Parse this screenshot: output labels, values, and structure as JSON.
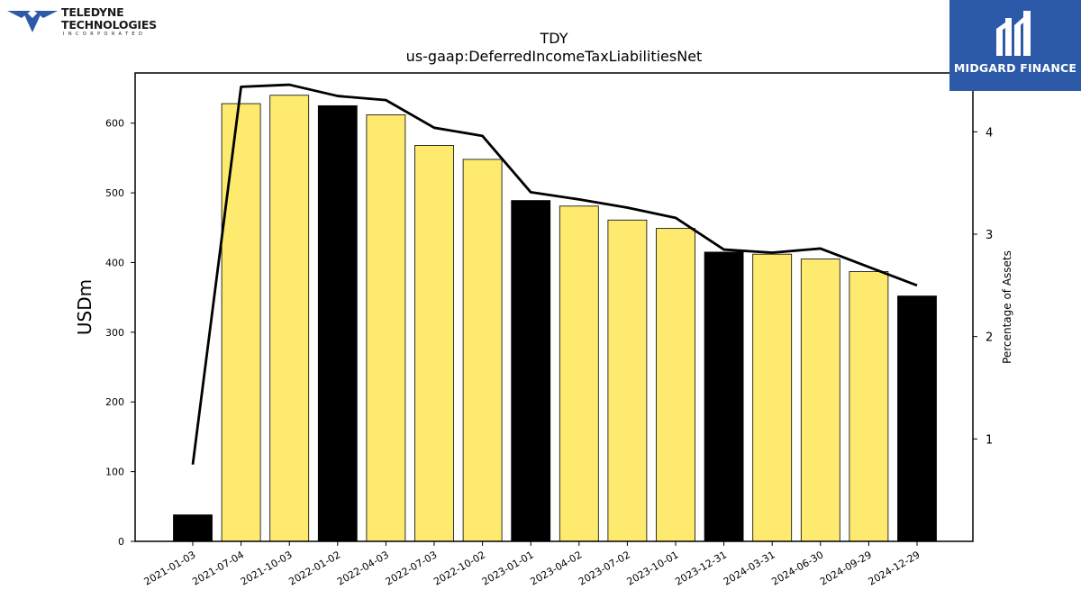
{
  "logos": {
    "left_line1": "TELEDYNE",
    "left_line2": "TECHNOLOGIES",
    "left_line3": "INCORPORATED",
    "right_brand": "MIDGARD FINANCE"
  },
  "colors": {
    "bar_highlight": "#000000",
    "bar_default": "#fdea6f",
    "line": "#000000",
    "brand_blue": "#2d5aa8"
  },
  "chart_data": {
    "type": "bar",
    "title": "TDY",
    "subtitle": "us-gaap:DeferredIncomeTaxLiabilitiesNet",
    "ylabel": "USDm",
    "y2label": "Percentage of Assets",
    "ylim": [
      0,
      672
    ],
    "y2lim": [
      0.0,
      4.575
    ],
    "yticks": [
      0,
      100,
      200,
      300,
      400,
      500,
      600
    ],
    "y2ticks": [
      1,
      2,
      3,
      4
    ],
    "categories": [
      "2021-01-03",
      "2021-07-04",
      "2021-10-03",
      "2022-01-02",
      "2022-04-03",
      "2022-07-03",
      "2022-10-02",
      "2023-01-01",
      "2023-04-02",
      "2023-07-02",
      "2023-10-01",
      "2023-12-31",
      "2024-03-31",
      "2024-06-30",
      "2024-09-29",
      "2024-12-29"
    ],
    "values": [
      38,
      628,
      640,
      625,
      612,
      568,
      548,
      489,
      481,
      461,
      449,
      415,
      412,
      405,
      387,
      352
    ],
    "highlight": [
      true,
      false,
      false,
      true,
      false,
      false,
      false,
      true,
      false,
      false,
      false,
      true,
      false,
      false,
      false,
      true
    ],
    "line_values": [
      0.75,
      4.44,
      4.46,
      4.35,
      4.31,
      4.04,
      3.96,
      3.41,
      3.34,
      3.26,
      3.16,
      2.85,
      2.82,
      2.86,
      2.68,
      2.5
    ],
    "grid": false
  }
}
